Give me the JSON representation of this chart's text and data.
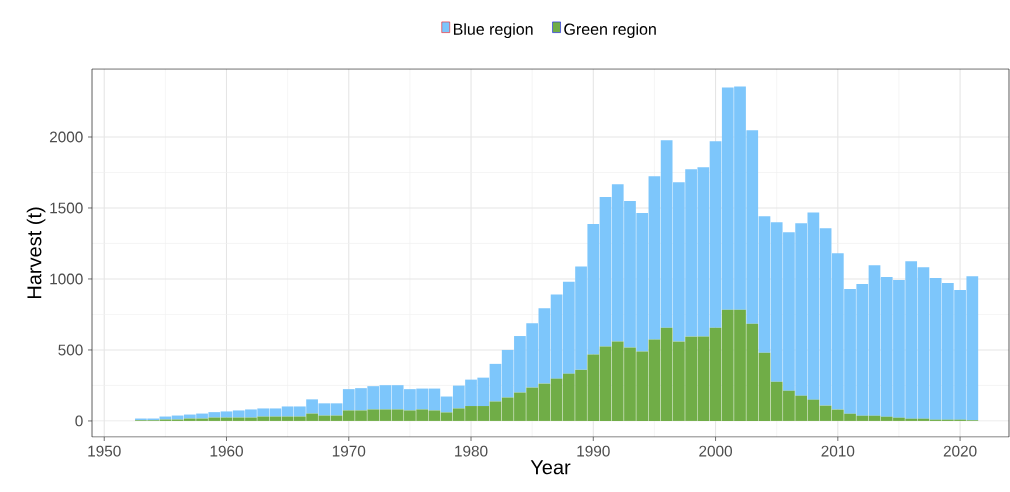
{
  "chart_data": {
    "type": "bar",
    "stacked": true,
    "xlabel": "Year",
    "ylabel": "Harvest (t)",
    "x": [
      1953,
      1954,
      1955,
      1956,
      1957,
      1958,
      1959,
      1960,
      1961,
      1962,
      1963,
      1964,
      1965,
      1966,
      1967,
      1968,
      1969,
      1970,
      1971,
      1972,
      1973,
      1974,
      1975,
      1976,
      1977,
      1978,
      1979,
      1980,
      1981,
      1982,
      1983,
      1984,
      1985,
      1986,
      1987,
      1988,
      1989,
      1990,
      1991,
      1992,
      1993,
      1994,
      1995,
      1996,
      1997,
      1998,
      1999,
      2000,
      2001,
      2002,
      2003,
      2004,
      2005,
      2006,
      2007,
      2008,
      2009,
      2010,
      2011,
      2012,
      2013,
      2014,
      2015,
      2016,
      2017,
      2018,
      2019,
      2020,
      2021
    ],
    "series": [
      {
        "name": "Green region",
        "color": "#70ad47",
        "values": [
          5,
          5,
          10,
          10,
          17,
          17,
          24,
          24,
          24,
          24,
          31,
          31,
          31,
          31,
          52,
          38,
          38,
          74,
          74,
          81,
          81,
          81,
          74,
          81,
          74,
          60,
          88,
          105,
          105,
          137,
          165,
          200,
          235,
          263,
          298,
          333,
          360,
          468,
          524,
          559,
          517,
          489,
          573,
          657,
          559,
          594,
          594,
          657,
          784,
          784,
          685,
          480,
          276,
          213,
          178,
          150,
          108,
          80,
          51,
          37,
          37,
          30,
          23,
          16,
          16,
          9,
          9,
          9,
          5
        ]
      },
      {
        "name": "Blue region",
        "color": "#7dc6fb",
        "values": [
          12,
          12,
          21,
          28,
          28,
          35,
          38,
          43,
          50,
          57,
          57,
          57,
          71,
          71,
          100,
          86,
          86,
          150,
          157,
          164,
          171,
          171,
          150,
          147,
          154,
          112,
          161,
          186,
          200,
          265,
          335,
          398,
          453,
          530,
          593,
          648,
          728,
          919,
          1053,
          1109,
          1032,
          975,
          1151,
          1320,
          1123,
          1179,
          1193,
          1313,
          1565,
          1572,
          1362,
          961,
          1123,
          1116,
          1214,
          1319,
          1249,
          1101,
          878,
          927,
          1060,
          983,
          969,
          1109,
          1067,
          997,
          962,
          913,
          1015
        ]
      }
    ],
    "xlim": [
      1949,
      2024
    ],
    "xticks": [
      1950,
      1960,
      1970,
      1980,
      1990,
      2000,
      2010,
      2020
    ],
    "ylim": [
      -113,
      2479
    ],
    "yticks": [
      0,
      500,
      1000,
      1500,
      2000
    ],
    "grid": true,
    "legend": "top"
  }
}
